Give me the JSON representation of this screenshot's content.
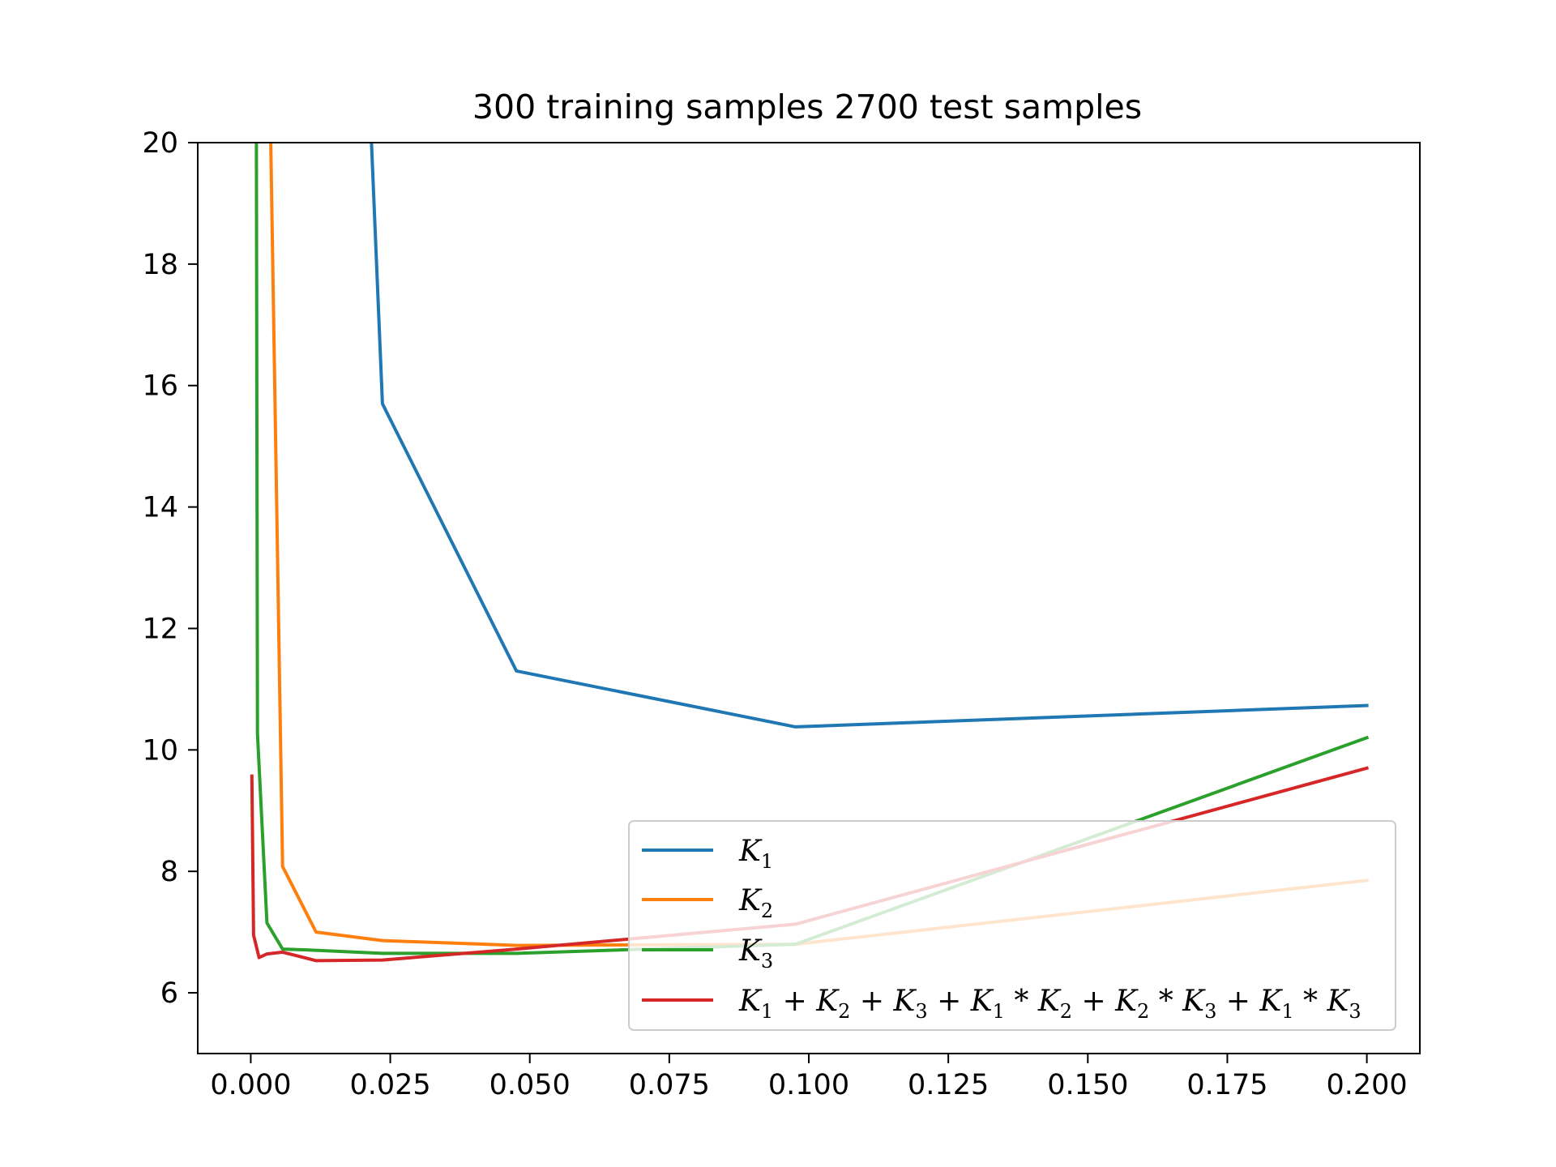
{
  "chart_data": {
    "type": "line",
    "title": "300 training samples 2700 test samples",
    "xlabel": "",
    "ylabel": "",
    "xlim": [
      -0.0095,
      0.2095
    ],
    "ylim": [
      5,
      20
    ],
    "xticks": [
      0.0,
      0.025,
      0.05,
      0.075,
      0.1,
      0.125,
      0.15,
      0.175,
      0.2
    ],
    "xtick_labels": [
      "0.000",
      "0.025",
      "0.050",
      "0.075",
      "0.100",
      "0.125",
      "0.150",
      "0.175",
      "0.200"
    ],
    "yticks": [
      6,
      8,
      10,
      12,
      14,
      16,
      18,
      20
    ],
    "ytick_labels": [
      "6",
      "8",
      "10",
      "12",
      "14",
      "16",
      "18",
      "20"
    ],
    "grid": false,
    "legend_position": "lower-right",
    "series": [
      {
        "name": "K1",
        "legend": {
          "base": "K",
          "sub": "1"
        },
        "color": "#1f77b4",
        "x": [
          0.0214,
          0.0236,
          0.0476,
          0.0976,
          0.2
        ],
        "y": [
          20.5,
          15.7,
          11.3,
          10.38,
          10.73
        ]
      },
      {
        "name": "K2",
        "legend": {
          "base": "K",
          "sub": "2"
        },
        "color": "#ff7f0e",
        "x": [
          0.0035,
          0.0057,
          0.0117,
          0.0236,
          0.0476,
          0.0976,
          0.2
        ],
        "y": [
          20.5,
          8.08,
          7.0,
          6.86,
          6.78,
          6.8,
          7.85
        ]
      },
      {
        "name": "K3",
        "legend": {
          "base": "K",
          "sub": "3"
        },
        "color": "#2ca02c",
        "x": [
          0.001,
          0.0012,
          0.0029,
          0.0057,
          0.0117,
          0.0236,
          0.0476,
          0.0976,
          0.2
        ],
        "y": [
          20.5,
          10.27,
          7.15,
          6.72,
          6.7,
          6.65,
          6.65,
          6.8,
          10.2
        ]
      },
      {
        "name": "K1 + K2 + K3 + K1 * K2 + K2 * K3 + K1 * K3",
        "legend": {
          "base": "K",
          "sub": "1"
        },
        "legend_parts": [
          {
            "base": "K",
            "sub": "1"
          },
          {
            "op": " + "
          },
          {
            "base": "K",
            "sub": "2"
          },
          {
            "op": " + "
          },
          {
            "base": "K",
            "sub": "3"
          },
          {
            "op": " + "
          },
          {
            "base": "K",
            "sub": "1"
          },
          {
            "op": " * "
          },
          {
            "base": "K",
            "sub": "2"
          },
          {
            "op": " + "
          },
          {
            "base": "K",
            "sub": "2"
          },
          {
            "op": " * "
          },
          {
            "base": "K",
            "sub": "3"
          },
          {
            "op": " + "
          },
          {
            "base": "K",
            "sub": "1"
          },
          {
            "op": " * "
          },
          {
            "base": "K",
            "sub": "3"
          }
        ],
        "color": "#d62728",
        "x": [
          0.0002,
          0.0005,
          0.0015,
          0.0029,
          0.0057,
          0.0117,
          0.0236,
          0.0476,
          0.0976,
          0.2
        ],
        "y": [
          9.57,
          6.95,
          6.58,
          6.64,
          6.67,
          6.53,
          6.54,
          6.72,
          7.13,
          9.7
        ]
      }
    ]
  }
}
